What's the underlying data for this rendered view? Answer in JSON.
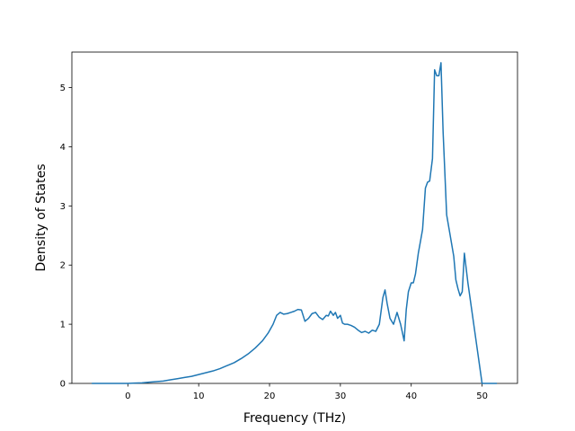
{
  "chart_data": {
    "type": "line",
    "title": "",
    "xlabel": "Frequency (THz)",
    "ylabel": "Density of States",
    "xlim": [
      -7.9,
      55.0
    ],
    "ylim": [
      0,
      5.6
    ],
    "xticks": [
      0,
      10,
      20,
      30,
      40,
      50
    ],
    "yticks": [
      0,
      1,
      2,
      3,
      4,
      5
    ],
    "grid": false,
    "legend": null,
    "series": [
      {
        "color": "#1f77b4",
        "x": [
          -5.0,
          -3.0,
          -1.0,
          0.0,
          1.0,
          2.0,
          3.0,
          4.0,
          5.0,
          6.0,
          7.0,
          8.0,
          9.0,
          10.0,
          11.0,
          12.0,
          13.0,
          14.0,
          15.0,
          16.0,
          17.0,
          18.0,
          19.0,
          19.8,
          20.5,
          21.0,
          21.5,
          22.0,
          22.5,
          23.0,
          23.5,
          24.0,
          24.5,
          25.0,
          25.5,
          26.0,
          26.5,
          27.0,
          27.5,
          28.0,
          28.3,
          28.6,
          29.0,
          29.3,
          29.6,
          30.0,
          30.3,
          30.6,
          31.0,
          31.5,
          32.0,
          32.5,
          33.0,
          33.5,
          34.0,
          34.5,
          35.0,
          35.5,
          36.0,
          36.3,
          36.6,
          37.0,
          37.5,
          38.0,
          38.5,
          39.0,
          39.3,
          39.6,
          40.0,
          40.3,
          40.6,
          41.0,
          41.3,
          41.6,
          42.0,
          42.3,
          42.6,
          43.0,
          43.3,
          43.6,
          43.9,
          44.2,
          44.5,
          45.0,
          45.5,
          46.0,
          46.3,
          46.6,
          46.9,
          47.2,
          47.5,
          48.0,
          50.0,
          52.0
        ],
        "values": [
          0.0,
          0.0,
          0.0,
          0.0,
          0.005,
          0.01,
          0.02,
          0.03,
          0.04,
          0.06,
          0.08,
          0.1,
          0.12,
          0.15,
          0.18,
          0.21,
          0.25,
          0.3,
          0.35,
          0.42,
          0.5,
          0.6,
          0.72,
          0.85,
          1.0,
          1.15,
          1.2,
          1.17,
          1.18,
          1.2,
          1.22,
          1.25,
          1.24,
          1.05,
          1.1,
          1.18,
          1.2,
          1.12,
          1.08,
          1.15,
          1.14,
          1.22,
          1.15,
          1.2,
          1.1,
          1.15,
          1.02,
          1.0,
          1.0,
          0.98,
          0.95,
          0.9,
          0.86,
          0.88,
          0.85,
          0.9,
          0.88,
          1.0,
          1.45,
          1.58,
          1.35,
          1.1,
          1.0,
          1.2,
          1.0,
          0.72,
          1.25,
          1.55,
          1.7,
          1.7,
          1.85,
          2.2,
          2.4,
          2.6,
          3.3,
          3.4,
          3.42,
          3.8,
          5.3,
          5.2,
          5.2,
          5.42,
          4.25,
          2.85,
          2.5,
          2.15,
          1.75,
          1.6,
          1.48,
          1.55,
          2.2,
          1.7,
          0.0,
          0.0
        ]
      }
    ]
  }
}
